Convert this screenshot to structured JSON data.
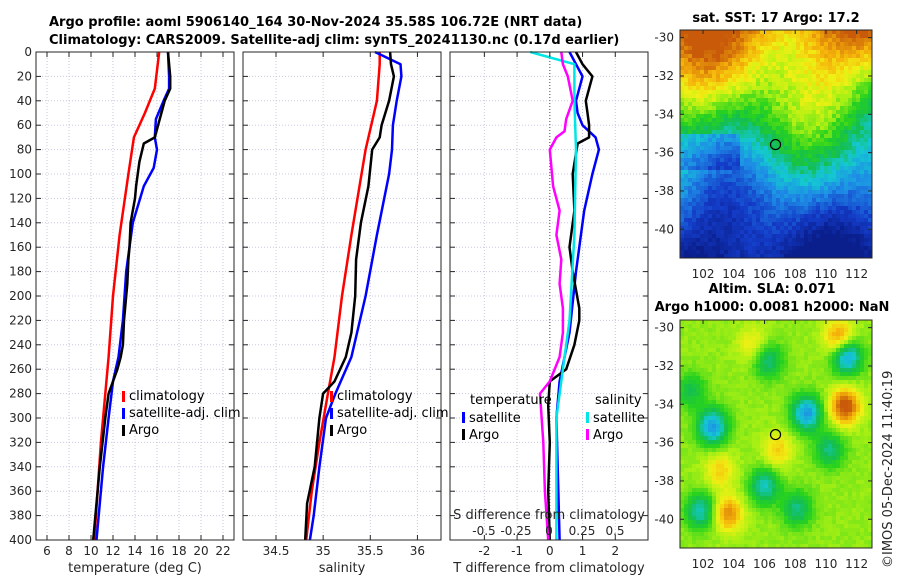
{
  "header": {
    "line1": "Argo profile: aoml 5906140_164 30-Nov-2024 35.58S 106.72E (NRT data)",
    "line2": "Climatology: CARS2009. Satellite-adj clim: synTS_20241130.nc (0.17d earlier)"
  },
  "colors": {
    "climatology": "#ff0000",
    "satellite": "#0000ff",
    "argo": "#000000",
    "sal_satellite": "#00e5e5",
    "sal_argo": "#ff00ff",
    "grid": "#c8c8e0"
  },
  "chart_data": [
    {
      "type": "line",
      "name": "temperature-profile",
      "xlabel": "temperature (deg C)",
      "ylabel": "",
      "xlim": [
        5,
        23
      ],
      "ylim": [
        400,
        0
      ],
      "xticks": [
        6,
        8,
        10,
        12,
        14,
        16,
        18,
        20,
        22
      ],
      "yticks": [
        0,
        20,
        40,
        60,
        80,
        100,
        120,
        140,
        160,
        180,
        200,
        220,
        240,
        260,
        280,
        300,
        320,
        340,
        360,
        380,
        400
      ],
      "grid": true,
      "legend": {
        "placement": "lower-right",
        "entries": [
          "climatology",
          "satellite-adj. clim",
          "Argo"
        ]
      },
      "series": [
        {
          "name": "climatology",
          "color": "#ff0000",
          "depth": [
            0,
            30,
            50,
            70,
            100,
            150,
            200,
            250,
            280,
            320,
            360,
            400
          ],
          "values": [
            16.2,
            15.8,
            14.9,
            13.9,
            13.4,
            12.6,
            12.0,
            11.6,
            11.3,
            10.9,
            10.6,
            10.3
          ]
        },
        {
          "name": "satellite-adj. clim",
          "color": "#0000ff",
          "depth": [
            0,
            20,
            30,
            40,
            55,
            70,
            80,
            95,
            110,
            140,
            180,
            220,
            250,
            270,
            300,
            340,
            370,
            400
          ],
          "values": [
            17.0,
            17.1,
            17.1,
            16.6,
            15.9,
            15.8,
            16.0,
            15.7,
            14.8,
            13.8,
            13.2,
            12.9,
            12.5,
            12.0,
            11.6,
            11.1,
            10.8,
            10.5
          ]
        },
        {
          "name": "Argo",
          "color": "#000000",
          "depth": [
            0,
            10,
            20,
            30,
            40,
            50,
            60,
            70,
            75,
            90,
            110,
            120,
            140,
            160,
            170,
            190,
            220,
            240,
            250,
            260,
            280,
            300,
            340,
            380,
            400
          ],
          "values": [
            17.0,
            17.1,
            17.2,
            17.2,
            16.7,
            16.4,
            16.1,
            15.8,
            14.8,
            14.4,
            14.1,
            14.0,
            13.6,
            13.5,
            13.4,
            13.3,
            13.0,
            12.9,
            12.7,
            12.4,
            11.6,
            11.3,
            10.8,
            10.4,
            10.2
          ]
        }
      ]
    },
    {
      "type": "line",
      "name": "salinity-profile",
      "xlabel": "salinity",
      "xlim": [
        34.15,
        36.25
      ],
      "ylim": [
        400,
        0
      ],
      "xticks": [
        34.5,
        35,
        35.5,
        36
      ],
      "grid": true,
      "legend": {
        "placement": "lower-right",
        "entries": [
          "climatology",
          "satellite-adj. clim",
          "Argo"
        ]
      },
      "series": [
        {
          "name": "climatology",
          "color": "#ff0000",
          "depth": [
            0,
            10,
            40,
            80,
            150,
            200,
            250,
            280,
            320,
            360,
            400
          ],
          "values": [
            35.6,
            35.6,
            35.57,
            35.45,
            35.3,
            35.2,
            35.12,
            35.05,
            34.96,
            34.88,
            34.82
          ]
        },
        {
          "name": "satellite-adj. clim",
          "color": "#0000ff",
          "depth": [
            0,
            10,
            20,
            40,
            60,
            80,
            100,
            150,
            200,
            250,
            280,
            300,
            340,
            380,
            400
          ],
          "values": [
            35.55,
            35.82,
            35.83,
            35.78,
            35.74,
            35.73,
            35.7,
            35.57,
            35.45,
            35.3,
            35.13,
            35.03,
            34.96,
            34.9,
            34.86
          ]
        },
        {
          "name": "Argo",
          "color": "#000000",
          "depth": [
            0,
            10,
            20,
            40,
            60,
            70,
            80,
            110,
            140,
            170,
            200,
            230,
            250,
            270,
            280,
            300,
            340,
            370,
            400
          ],
          "values": [
            35.71,
            35.72,
            35.75,
            35.7,
            35.62,
            35.6,
            35.52,
            35.48,
            35.4,
            35.35,
            35.34,
            35.3,
            35.24,
            35.12,
            35.0,
            34.96,
            34.91,
            34.83,
            34.81
          ]
        }
      ]
    },
    {
      "type": "line",
      "name": "difference-profile",
      "xlabel": "T difference from climatology",
      "xlabel_top": "S difference from climatology",
      "xlim": [
        -3.05,
        3.0
      ],
      "ylim": [
        400,
        0
      ],
      "xticks": [
        -2,
        -1,
        0,
        1,
        2
      ],
      "xticks_top_labels": [
        "-0.5",
        "-0.25",
        "0",
        "0.25",
        "0.5"
      ],
      "grid": true,
      "legend": {
        "placement": "lower",
        "groups": [
          {
            "title": "temperature",
            "entries": [
              "satellite",
              "Argo"
            ]
          },
          {
            "title": "salinity",
            "entries": [
              "satellite",
              "Argo"
            ]
          }
        ]
      },
      "series": [
        {
          "name": "temperature satellite",
          "color": "#0000ff",
          "depth": [
            0,
            10,
            20,
            40,
            50,
            60,
            70,
            80,
            100,
            130,
            180,
            230,
            270,
            300,
            350,
            400
          ],
          "values": [
            0.6,
            0.8,
            1.0,
            0.8,
            0.85,
            1.0,
            1.4,
            1.5,
            1.3,
            1.05,
            0.8,
            0.6,
            0.3,
            0.2,
            0.25,
            0.3
          ]
        },
        {
          "name": "temperature Argo",
          "color": "#000000",
          "depth": [
            0,
            10,
            20,
            30,
            40,
            50,
            60,
            70,
            75,
            100,
            130,
            160,
            180,
            210,
            220,
            240,
            260,
            270,
            290,
            320,
            360,
            400
          ],
          "values": [
            0.8,
            1.0,
            1.3,
            1.2,
            1.1,
            1.15,
            1.2,
            1.2,
            0.85,
            0.7,
            0.75,
            0.6,
            0.7,
            0.9,
            0.9,
            0.75,
            0.5,
            0.0,
            -0.05,
            0.0,
            -0.05,
            0.0
          ]
        },
        {
          "name": "salinity satellite",
          "color": "#00e5e5",
          "depth": [
            0,
            10,
            40,
            80,
            150,
            220,
            260,
            300,
            360,
            400
          ],
          "values": [
            -0.6,
            0.75,
            0.75,
            0.8,
            0.75,
            0.6,
            0.4,
            0.2,
            0.2,
            0.2
          ]
        },
        {
          "name": "salinity Argo",
          "color": "#ff00ff",
          "depth": [
            0,
            10,
            20,
            40,
            55,
            65,
            70,
            80,
            110,
            130,
            150,
            170,
            190,
            210,
            230,
            250,
            270,
            280,
            320,
            360,
            400
          ],
          "values": [
            0.35,
            0.4,
            0.55,
            0.7,
            0.5,
            0.45,
            0.2,
            0.0,
            0.1,
            0.3,
            0.2,
            0.35,
            0.3,
            0.4,
            0.4,
            0.3,
            0.0,
            -0.3,
            -0.2,
            -0.15,
            -0.05
          ]
        }
      ]
    },
    {
      "type": "heatmap",
      "name": "sst-map",
      "title": "sat. SST: 17 Argo: 17.2",
      "xlim": [
        100.5,
        113
      ],
      "ylim": [
        -41.5,
        -29.6
      ],
      "xticks": [
        102,
        104,
        106,
        108,
        110,
        112
      ],
      "yticks": [
        -30,
        -32,
        -34,
        -36,
        -38,
        -40
      ],
      "marker": {
        "lon": 106.72,
        "lat": -35.58
      }
    },
    {
      "type": "heatmap",
      "name": "sla-map",
      "title_line1": "Altim. SLA: 0.071",
      "title_line2": "Argo h1000: 0.0081 h2000: NaN",
      "xlim": [
        100.5,
        113
      ],
      "ylim": [
        -41.5,
        -29.6
      ],
      "xticks": [
        102,
        104,
        106,
        108,
        110,
        112
      ],
      "yticks": [
        -30,
        -32,
        -34,
        -36,
        -38,
        -40
      ],
      "marker": {
        "lon": 106.72,
        "lat": -35.58
      }
    }
  ],
  "footer": {
    "credit": "©IMOS 05-Dec-2024 11:40:19"
  }
}
